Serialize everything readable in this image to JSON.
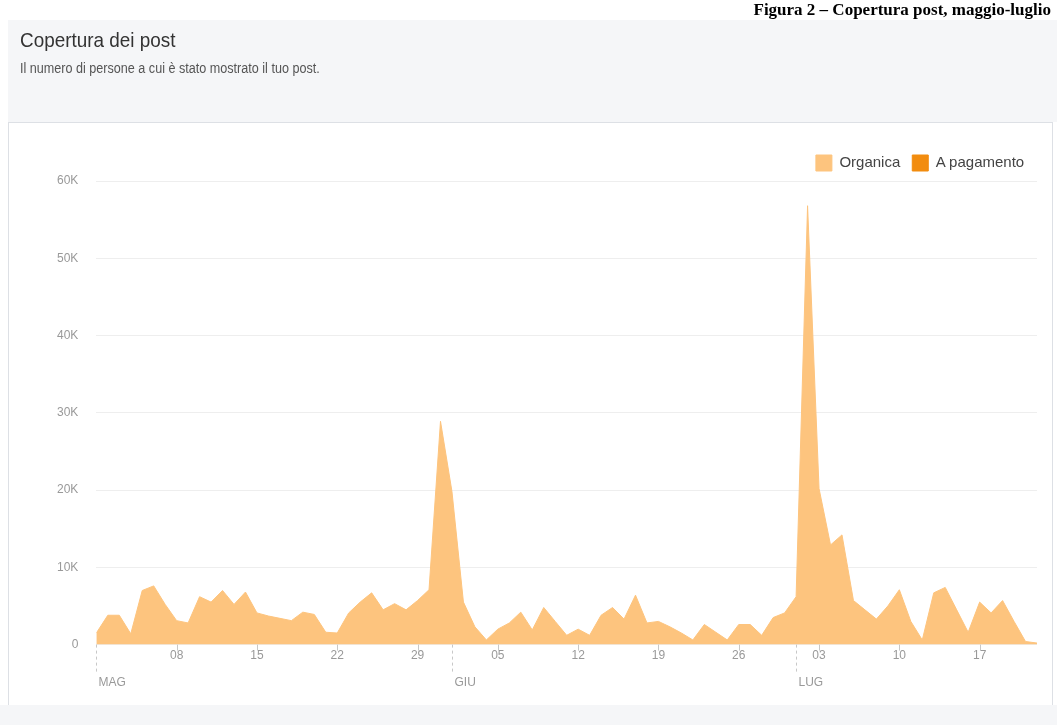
{
  "chart_data": {
    "type": "area",
    "title": "Copertura dei post",
    "subtitle": "Il numero di persone a cui è stato mostrato il tuo post.",
    "annotations": [
      "Figura 2 – Copertura post, maggio-luglio"
    ],
    "x": [
      "--05-01",
      "--05-02",
      "--05-03",
      "--05-04",
      "--05-05",
      "--05-06",
      "--05-07",
      "--05-08",
      "--05-09",
      "--05-10",
      "--05-11",
      "--05-12",
      "--05-13",
      "--05-14",
      "--05-15",
      "--05-16",
      "--05-17",
      "--05-18",
      "--05-19",
      "--05-20",
      "--05-21",
      "--05-22",
      "--05-23",
      "--05-24",
      "--05-25",
      "--05-26",
      "--05-27",
      "--05-28",
      "--05-29",
      "--05-30",
      "--05-31",
      "--06-01",
      "--06-02",
      "--06-03",
      "--06-04",
      "--06-05",
      "--06-06",
      "--06-07",
      "--06-08",
      "--06-09",
      "--06-10",
      "--06-11",
      "--06-12",
      "--06-13",
      "--06-14",
      "--06-15",
      "--06-16",
      "--06-17",
      "--06-18",
      "--06-19",
      "--06-20",
      "--06-21",
      "--06-22",
      "--06-23",
      "--06-24",
      "--06-25",
      "--06-26",
      "--06-27",
      "--06-28",
      "--06-29",
      "--06-30",
      "--07-01",
      "--07-02",
      "--07-03",
      "--07-04",
      "--07-05",
      "--07-06",
      "--07-07",
      "--07-08",
      "--07-09",
      "--07-10",
      "--07-11",
      "--07-12",
      "--07-13",
      "--07-14",
      "--07-15",
      "--07-16",
      "--07-17",
      "--07-18",
      "--07-19",
      "--07-20",
      "--07-21",
      "--07-22"
    ],
    "series": [
      {
        "name": "Organica",
        "color": "#fdc47e",
        "values": [
          1.5,
          3.8,
          3.8,
          1.4,
          7.0,
          7.6,
          5.2,
          3.1,
          2.8,
          6.2,
          5.5,
          7.0,
          5.2,
          6.8,
          4.1,
          3.7,
          3.4,
          3.1,
          4.2,
          3.9,
          1.6,
          1.5,
          4.1,
          5.5,
          6.7,
          4.5,
          5.3,
          4.5,
          5.7,
          7.1,
          28.9,
          19.8,
          5.5,
          2.3,
          0.6,
          2.0,
          2.8,
          4.2,
          1.9,
          4.8,
          3.0,
          1.2,
          2.0,
          1.2,
          3.8,
          4.8,
          3.3,
          6.4,
          2.8,
          3.0,
          2.3,
          1.5,
          0.6,
          2.6,
          1.6,
          0.6,
          2.6,
          2.6,
          1.2,
          3.5,
          4.1,
          6.2,
          56.8,
          20.2,
          12.9,
          14.2,
          5.7,
          4.5,
          3.3,
          5.0,
          7.1,
          3.0,
          0.6,
          6.7,
          7.4,
          4.5,
          1.6,
          5.5,
          4.1,
          5.7,
          3.0,
          0.4,
          0.2
        ]
      },
      {
        "name": "A pagamento",
        "color": "#f28c0f",
        "values": [
          null,
          null,
          null,
          null,
          null,
          null,
          null,
          null,
          null,
          null,
          null,
          null,
          null,
          null,
          null,
          null,
          null,
          null,
          null,
          null,
          null,
          null,
          null,
          null,
          null,
          null,
          null,
          null,
          null,
          null,
          null,
          null,
          null,
          null,
          null,
          null,
          null,
          null,
          null,
          null,
          null,
          null,
          null,
          null,
          null,
          null,
          null,
          null,
          null,
          null,
          null,
          null,
          null,
          null,
          null,
          null,
          null,
          null,
          null,
          null,
          null,
          null,
          null,
          null,
          null,
          null,
          null,
          null,
          null,
          null,
          null,
          null,
          null,
          null,
          null,
          null,
          null,
          null,
          null,
          null,
          null,
          null,
          null
        ]
      }
    ],
    "xlim": [
      "--05-01",
      "--07-22"
    ],
    "ref_lines": [
      {
        "axis": "x",
        "value": "--05-01",
        "label": "MAG",
        "line_style": "dashed"
      },
      {
        "axis": "x",
        "value": "--06-01",
        "label": "GIU",
        "line_style": "dashed"
      },
      {
        "axis": "x",
        "value": "--07-01",
        "label": "LUG",
        "line_style": "dashed"
      }
    ],
    "xticks": [
      {
        "value": "--05-08",
        "label": "08"
      },
      {
        "value": "--05-15",
        "label": "15"
      },
      {
        "value": "--05-22",
        "label": "22"
      },
      {
        "value": "--05-29",
        "label": "29"
      },
      {
        "value": "--06-05",
        "label": "05"
      },
      {
        "value": "--06-12",
        "label": "12"
      },
      {
        "value": "--06-19",
        "label": "19"
      },
      {
        "value": "--06-26",
        "label": "26"
      },
      {
        "value": "--07-03",
        "label": "03"
      },
      {
        "value": "--07-10",
        "label": "10"
      },
      {
        "value": "--07-17",
        "label": "17"
      }
    ],
    "ylim": [
      0,
      60
    ],
    "yticks": [
      0,
      {
        "value": 10,
        "label": "10K"
      },
      {
        "value": 20,
        "label": "20K"
      },
      {
        "value": 30,
        "label": "30K"
      },
      {
        "value": 40,
        "label": "40K"
      },
      {
        "value": 50,
        "label": "50K"
      },
      {
        "value": 60,
        "label": "60K"
      }
    ],
    "grid": "y",
    "legend": "top right",
    "marker": "none"
  }
}
